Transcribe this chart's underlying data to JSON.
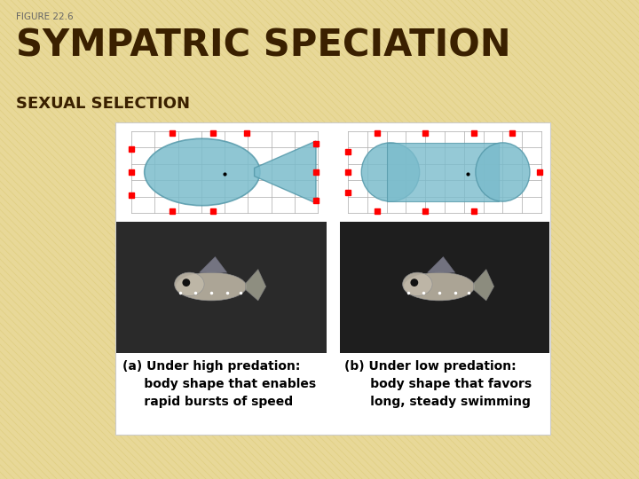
{
  "figure_label": "FIGURE 22.6",
  "title": "SYMPATRIC SPECIATION",
  "subtitle": "SEXUAL SELECTION",
  "bg_color": "#e8d898",
  "stripe_color": "#d4c060",
  "title_color": "#3a2000",
  "subtitle_color": "#3a2000",
  "label_color": "#666666",
  "panel_bg": "#ffffff",
  "grid_color": "#aaaaaa",
  "fish_fill": "#7bbccc",
  "fish_edge": "#5599aa",
  "dot_color": "red",
  "caption_a": "(a) Under high predation:\n     body shape that enables\n     rapid bursts of speed",
  "caption_b": "(b) Under low predation:\n      body shape that favors\n      long, steady swimming",
  "photo_left_bg": "#2a2a2a",
  "photo_right_bg": "#1e1e1e"
}
